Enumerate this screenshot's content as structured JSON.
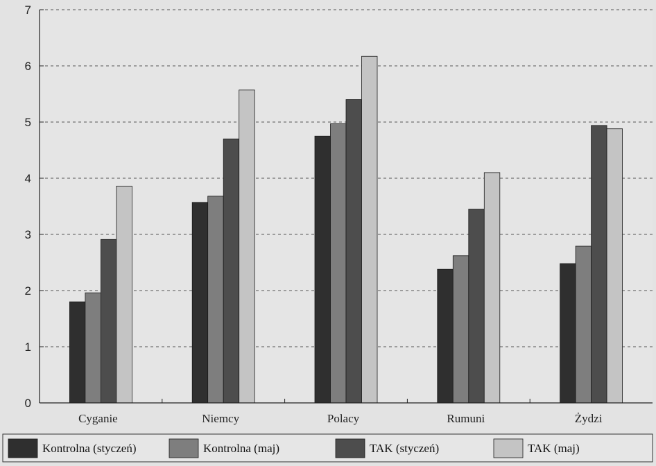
{
  "chart_data": {
    "type": "bar",
    "title": "",
    "xlabel": "",
    "ylabel": "",
    "ylim": [
      0,
      7
    ],
    "yticks": [
      "0",
      "1",
      "2",
      "3",
      "4",
      "5",
      "6",
      "7"
    ],
    "grid": "horizontal-dashed",
    "legend": "bottom",
    "categories": [
      "Cyganie",
      "Niemcy",
      "Polacy",
      "Rumuni",
      "Żydzi"
    ],
    "series": [
      {
        "name": "Kontrolna (styczeń)",
        "color": "#2f2f2f",
        "values": [
          1.8,
          3.57,
          4.75,
          2.38,
          2.48
        ]
      },
      {
        "name": "Kontrolna (maj)",
        "color": "#7e7e7e",
        "values": [
          1.96,
          3.68,
          4.97,
          2.62,
          2.79
        ]
      },
      {
        "name": "TAK (styczeń)",
        "color": "#4d4d4d",
        "values": [
          2.91,
          4.7,
          5.4,
          3.45,
          4.94
        ]
      },
      {
        "name": "TAK (maj)",
        "color": "#c4c4c4",
        "values": [
          3.86,
          5.57,
          6.17,
          4.1,
          4.88
        ]
      }
    ]
  }
}
